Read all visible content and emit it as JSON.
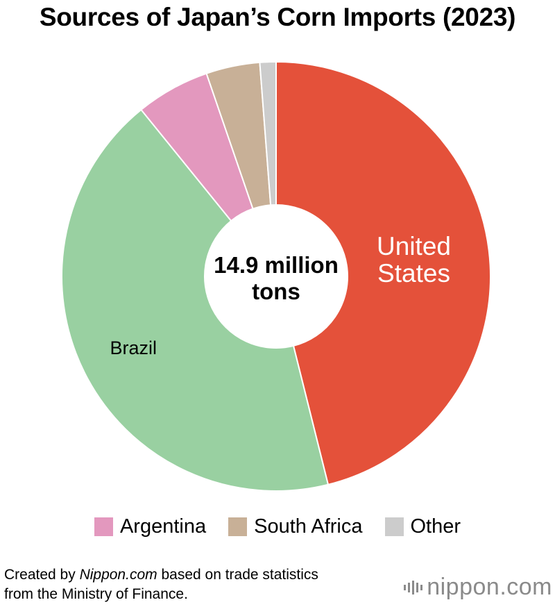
{
  "title": "Sources of Japan’s Corn Imports (2023)",
  "chart_data": {
    "type": "pie",
    "center_label": [
      "14.9 million",
      "tons"
    ],
    "total": 14.9,
    "unit": "million tons",
    "slices": [
      {
        "name": "United States",
        "value": 45.5,
        "color": "#e4513a",
        "label_lines": [
          "United",
          "States"
        ],
        "label_color": "#ffffff"
      },
      {
        "name": "Brazil",
        "value": 42.5,
        "color": "#99d0a1",
        "label_lines": [
          "Brazil"
        ],
        "label_color": "#000000"
      },
      {
        "name": "Argentina",
        "value": 5.5,
        "color": "#e398be",
        "label_lines": [],
        "label_color": "#000000"
      },
      {
        "name": "South Africa",
        "value": 4.0,
        "color": "#c8b097",
        "label_lines": [],
        "label_color": "#000000"
      },
      {
        "name": "Other",
        "value": 1.2,
        "color": "#cccccc",
        "label_lines": [],
        "label_color": "#000000"
      }
    ],
    "legend": [
      {
        "name": "Argentina",
        "color": "#e398be"
      },
      {
        "name": "South Africa",
        "color": "#c8b097"
      },
      {
        "name": "Other",
        "color": "#cccccc"
      }
    ]
  },
  "footer": {
    "prefix": "Created by ",
    "site": "Nippon.com",
    "suffix": " based on trade statistics",
    "line2": "from the Ministry of Finance."
  },
  "logo": {
    "text": "nippon",
    "dot_com": ".com"
  }
}
